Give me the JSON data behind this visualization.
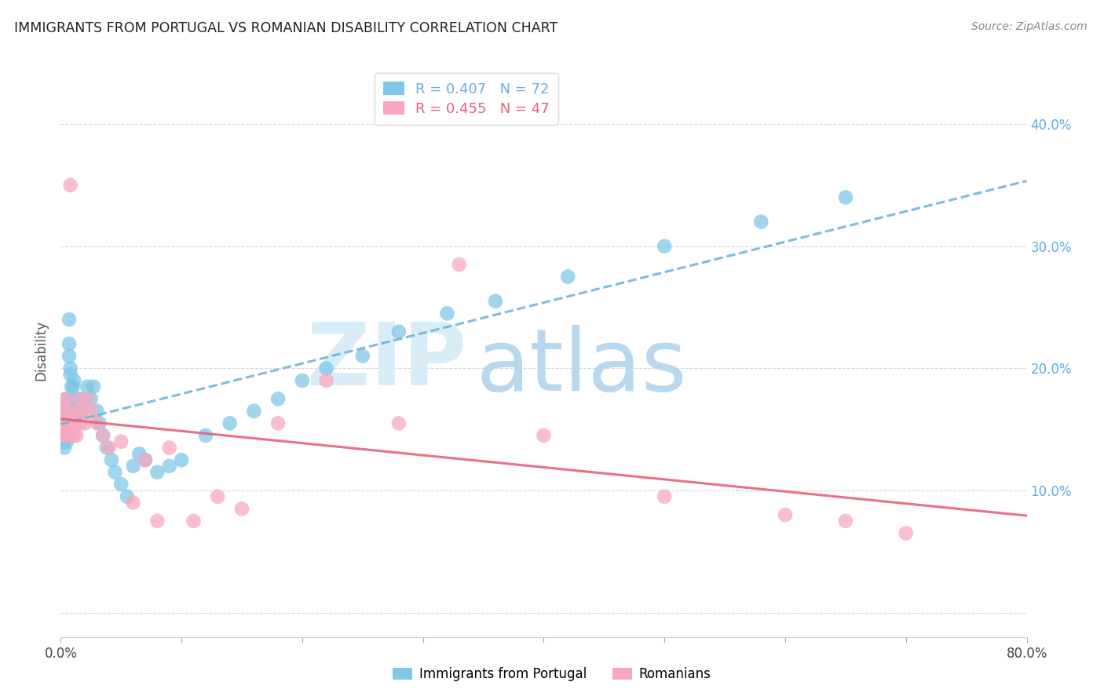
{
  "title": "IMMIGRANTS FROM PORTUGAL VS ROMANIAN DISABILITY CORRELATION CHART",
  "source": "Source: ZipAtlas.com",
  "ylabel": "Disability",
  "xlim": [
    0.0,
    0.8
  ],
  "ylim": [
    -0.02,
    0.45
  ],
  "xticks": [
    0.0,
    0.1,
    0.2,
    0.3,
    0.4,
    0.5,
    0.6,
    0.7,
    0.8
  ],
  "xtick_labels": [
    "0.0%",
    "",
    "",
    "",
    "",
    "",
    "",
    "",
    "80.0%"
  ],
  "yticks": [
    0.0,
    0.1,
    0.2,
    0.3,
    0.4
  ],
  "ytick_right_labels": [
    "",
    "10.0%",
    "20.0%",
    "30.0%",
    "40.0%"
  ],
  "series1_name": "Immigrants from Portugal",
  "series2_name": "Romanians",
  "series1_color": "#7fc8e8",
  "series2_color": "#f7a8c0",
  "trendline1_color": "#6ab0d8",
  "trendline2_color": "#e8607a",
  "R1": 0.407,
  "N1": 72,
  "R2": 0.455,
  "N2": 47,
  "background_color": "#ffffff",
  "grid_color": "#cccccc",
  "tick_label_color_right": "#5aade0",
  "watermark_zip_color": "#d8edf8",
  "watermark_atlas_color": "#b8d8f0",
  "series1_x": [
    0.001,
    0.001,
    0.002,
    0.002,
    0.002,
    0.002,
    0.003,
    0.003,
    0.003,
    0.003,
    0.004,
    0.004,
    0.004,
    0.005,
    0.005,
    0.005,
    0.005,
    0.006,
    0.006,
    0.006,
    0.007,
    0.007,
    0.007,
    0.008,
    0.008,
    0.009,
    0.009,
    0.01,
    0.01,
    0.01,
    0.011,
    0.011,
    0.012,
    0.012,
    0.013,
    0.014,
    0.015,
    0.016,
    0.017,
    0.018,
    0.02,
    0.022,
    0.025,
    0.027,
    0.03,
    0.032,
    0.035,
    0.038,
    0.042,
    0.045,
    0.05,
    0.055,
    0.06,
    0.065,
    0.07,
    0.08,
    0.09,
    0.1,
    0.12,
    0.14,
    0.16,
    0.18,
    0.2,
    0.22,
    0.25,
    0.28,
    0.32,
    0.36,
    0.42,
    0.5,
    0.58,
    0.65
  ],
  "series1_y": [
    0.155,
    0.145,
    0.165,
    0.15,
    0.14,
    0.17,
    0.155,
    0.145,
    0.16,
    0.135,
    0.17,
    0.155,
    0.145,
    0.16,
    0.175,
    0.14,
    0.155,
    0.165,
    0.155,
    0.17,
    0.24,
    0.22,
    0.21,
    0.2,
    0.195,
    0.185,
    0.175,
    0.185,
    0.175,
    0.165,
    0.175,
    0.19,
    0.17,
    0.165,
    0.175,
    0.165,
    0.175,
    0.175,
    0.165,
    0.17,
    0.175,
    0.185,
    0.175,
    0.185,
    0.165,
    0.155,
    0.145,
    0.135,
    0.125,
    0.115,
    0.105,
    0.095,
    0.12,
    0.13,
    0.125,
    0.115,
    0.12,
    0.125,
    0.145,
    0.155,
    0.165,
    0.175,
    0.19,
    0.2,
    0.21,
    0.23,
    0.245,
    0.255,
    0.275,
    0.3,
    0.32,
    0.34
  ],
  "series2_x": [
    0.001,
    0.002,
    0.002,
    0.003,
    0.003,
    0.004,
    0.004,
    0.005,
    0.005,
    0.006,
    0.006,
    0.007,
    0.007,
    0.008,
    0.008,
    0.009,
    0.01,
    0.011,
    0.012,
    0.013,
    0.014,
    0.015,
    0.016,
    0.018,
    0.02,
    0.022,
    0.025,
    0.03,
    0.035,
    0.04,
    0.05,
    0.06,
    0.07,
    0.08,
    0.09,
    0.11,
    0.13,
    0.15,
    0.18,
    0.22,
    0.28,
    0.33,
    0.4,
    0.5,
    0.6,
    0.65,
    0.7
  ],
  "series2_y": [
    0.155,
    0.17,
    0.155,
    0.165,
    0.145,
    0.175,
    0.155,
    0.155,
    0.145,
    0.155,
    0.165,
    0.155,
    0.145,
    0.155,
    0.35,
    0.16,
    0.155,
    0.145,
    0.155,
    0.145,
    0.165,
    0.175,
    0.155,
    0.165,
    0.155,
    0.175,
    0.165,
    0.155,
    0.145,
    0.135,
    0.14,
    0.09,
    0.125,
    0.075,
    0.135,
    0.075,
    0.095,
    0.085,
    0.155,
    0.19,
    0.155,
    0.285,
    0.145,
    0.095,
    0.08,
    0.075,
    0.065
  ]
}
